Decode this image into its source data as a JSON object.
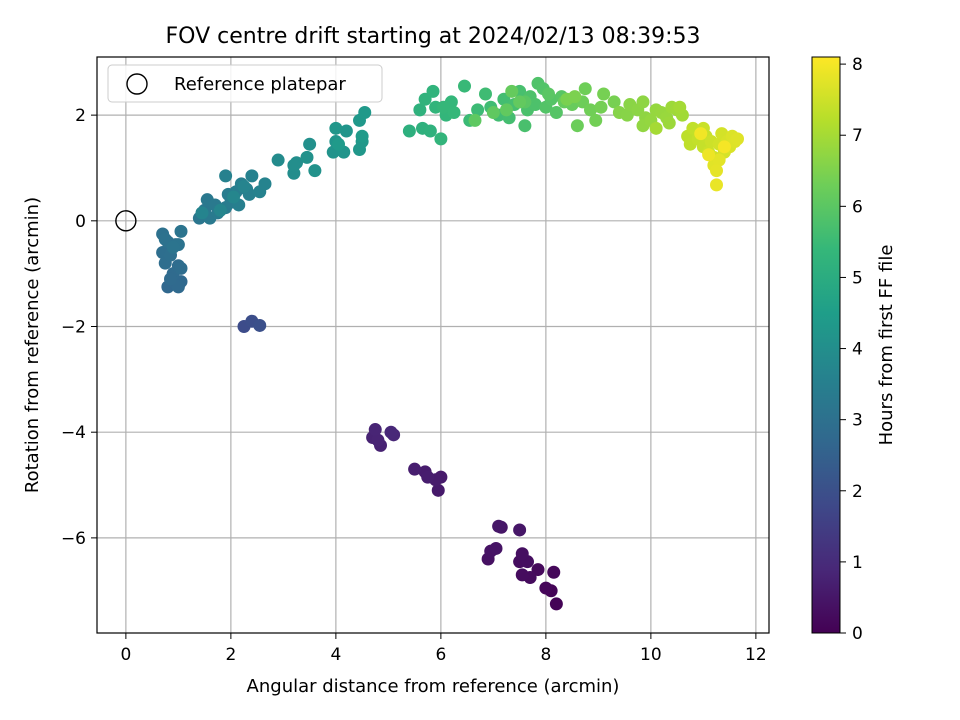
{
  "chart_data": {
    "type": "scatter",
    "title": "FOV centre drift starting at 2024/02/13 08:39:53",
    "xlabel": "Angular distance from reference (arcmin)",
    "ylabel": "Rotation from reference (arcmin)",
    "colorbar_label": "Hours from first FF file",
    "xlim": [
      -0.55,
      12.25
    ],
    "ylim": [
      -7.8,
      3.1
    ],
    "clim": [
      0,
      8.1
    ],
    "xticks": [
      0,
      2,
      4,
      6,
      8,
      10,
      12
    ],
    "xtick_labels": [
      "0",
      "2",
      "4",
      "6",
      "8",
      "10",
      "12"
    ],
    "yticks": [
      -6,
      -4,
      -2,
      0,
      2
    ],
    "ytick_labels": [
      "−6",
      "−4",
      "−2",
      "0",
      "2"
    ],
    "cticks": [
      0,
      1,
      2,
      3,
      4,
      5,
      6,
      7,
      8
    ],
    "ctick_labels": [
      "0",
      "1",
      "2",
      "3",
      "4",
      "5",
      "6",
      "7",
      "8"
    ],
    "grid": true,
    "colormap": "viridis",
    "colormap_stops": [
      "#440154",
      "#482878",
      "#3e4989",
      "#31688e",
      "#26828e",
      "#1f9e89",
      "#35b779",
      "#6ece58",
      "#b5de2b",
      "#fde725"
    ],
    "legend": {
      "placement": "upper-left",
      "entries": [
        {
          "label": "Reference platepar",
          "marker": "open-circle"
        }
      ]
    },
    "reference_point": {
      "x": 0,
      "y": 0
    },
    "series": [
      {
        "points": [
          [
            8.2,
            -7.25,
            0.05
          ],
          [
            8.1,
            -7.0,
            0.08
          ],
          [
            8.0,
            -6.95,
            0.12
          ],
          [
            8.15,
            -6.65,
            0.15
          ],
          [
            7.85,
            -6.6,
            0.18
          ],
          [
            7.7,
            -6.75,
            0.22
          ],
          [
            7.55,
            -6.7,
            0.25
          ],
          [
            7.5,
            -6.45,
            0.28
          ],
          [
            7.65,
            -6.45,
            0.3
          ],
          [
            7.55,
            -6.3,
            0.33
          ],
          [
            6.9,
            -6.4,
            0.36
          ],
          [
            6.95,
            -6.25,
            0.4
          ],
          [
            7.05,
            -6.2,
            0.42
          ],
          [
            7.15,
            -5.8,
            0.45
          ],
          [
            7.5,
            -5.85,
            0.48
          ],
          [
            7.1,
            -5.78,
            0.5
          ],
          [
            5.95,
            -5.1,
            0.55
          ],
          [
            6.0,
            -4.85,
            0.58
          ],
          [
            5.9,
            -4.9,
            0.6
          ],
          [
            5.7,
            -4.75,
            0.62
          ],
          [
            5.75,
            -4.85,
            0.65
          ],
          [
            5.5,
            -4.7,
            0.68
          ],
          [
            4.85,
            -4.25,
            0.75
          ],
          [
            4.7,
            -4.1,
            0.78
          ],
          [
            4.8,
            -4.15,
            0.8
          ],
          [
            4.75,
            -3.95,
            0.82
          ],
          [
            5.1,
            -4.05,
            0.88
          ],
          [
            5.05,
            -4.0,
            0.9
          ],
          [
            2.25,
            -2.0,
            1.9
          ],
          [
            2.4,
            -1.9,
            1.95
          ],
          [
            2.55,
            -1.98,
            2.0
          ],
          [
            0.8,
            -1.25,
            2.7
          ],
          [
            0.95,
            -1.2,
            2.72
          ],
          [
            1.05,
            -1.15,
            2.75
          ],
          [
            1.0,
            -1.25,
            2.78
          ],
          [
            0.9,
            -1.0,
            2.8
          ],
          [
            0.85,
            -1.1,
            2.82
          ],
          [
            1.0,
            -0.85,
            2.85
          ],
          [
            1.05,
            -0.9,
            2.88
          ],
          [
            0.75,
            -0.8,
            2.9
          ],
          [
            0.7,
            -0.6,
            2.92
          ],
          [
            0.85,
            -0.65,
            2.95
          ],
          [
            0.95,
            -0.45,
            2.98
          ],
          [
            0.8,
            -0.4,
            3.0
          ],
          [
            0.7,
            -0.25,
            3.02
          ],
          [
            0.75,
            -0.35,
            3.05
          ],
          [
            1.0,
            -0.45,
            3.08
          ],
          [
            1.05,
            -0.2,
            3.1
          ],
          [
            0.9,
            -0.5,
            3.12
          ],
          [
            1.4,
            0.05,
            3.2
          ],
          [
            1.5,
            0.2,
            3.22
          ],
          [
            1.55,
            0.4,
            3.25
          ],
          [
            1.7,
            0.3,
            3.28
          ],
          [
            1.6,
            0.05,
            3.3
          ],
          [
            1.75,
            0.15,
            3.32
          ],
          [
            1.9,
            0.25,
            3.35
          ],
          [
            2.0,
            0.35,
            3.38
          ],
          [
            1.95,
            0.5,
            3.4
          ],
          [
            2.1,
            0.55,
            3.42
          ],
          [
            2.2,
            0.7,
            3.45
          ],
          [
            2.3,
            0.6,
            3.48
          ],
          [
            2.15,
            0.3,
            3.5
          ],
          [
            2.35,
            0.5,
            3.52
          ],
          [
            1.9,
            0.85,
            3.55
          ],
          [
            2.4,
            0.85,
            3.58
          ],
          [
            2.55,
            0.55,
            3.6
          ],
          [
            2.65,
            0.7,
            3.62
          ],
          [
            2.25,
            0.65,
            3.65
          ],
          [
            1.45,
            0.15,
            3.68
          ],
          [
            1.8,
            0.2,
            3.7
          ],
          [
            2.05,
            0.45,
            3.72
          ],
          [
            2.9,
            1.15,
            3.9
          ],
          [
            3.2,
            0.9,
            3.95
          ],
          [
            3.25,
            1.1,
            3.98
          ],
          [
            3.2,
            1.05,
            4.0
          ],
          [
            3.5,
            1.45,
            4.05
          ],
          [
            3.45,
            1.2,
            4.08
          ],
          [
            3.6,
            0.95,
            4.1
          ],
          [
            3.95,
            1.3,
            4.15
          ],
          [
            4.0,
            1.5,
            4.18
          ],
          [
            4.15,
            1.3,
            4.2
          ],
          [
            4.2,
            1.7,
            4.22
          ],
          [
            4.0,
            1.75,
            4.25
          ],
          [
            4.45,
            1.35,
            4.28
          ],
          [
            4.5,
            1.5,
            4.3
          ],
          [
            4.45,
            1.9,
            4.32
          ],
          [
            4.55,
            2.05,
            4.35
          ],
          [
            4.05,
            1.45,
            4.38
          ],
          [
            4.5,
            1.6,
            4.4
          ],
          [
            5.4,
            1.7,
            5.1
          ],
          [
            5.65,
            1.75,
            5.15
          ],
          [
            5.8,
            1.7,
            5.18
          ],
          [
            5.6,
            2.1,
            5.2
          ],
          [
            5.7,
            2.3,
            5.22
          ],
          [
            5.85,
            2.45,
            5.25
          ],
          [
            5.9,
            2.15,
            5.28
          ],
          [
            6.0,
            1.55,
            5.3
          ],
          [
            6.1,
            2.0,
            5.32
          ],
          [
            6.2,
            2.25,
            5.35
          ],
          [
            6.05,
            2.15,
            5.38
          ],
          [
            6.25,
            2.05,
            5.4
          ],
          [
            6.45,
            2.55,
            5.45
          ],
          [
            6.55,
            1.9,
            5.5
          ],
          [
            6.7,
            2.1,
            5.52
          ],
          [
            6.85,
            2.4,
            5.55
          ],
          [
            6.95,
            2.15,
            5.58
          ],
          [
            7.1,
            2.0,
            5.6
          ],
          [
            7.2,
            2.3,
            5.62
          ],
          [
            7.3,
            1.95,
            5.65
          ],
          [
            7.4,
            2.2,
            5.68
          ],
          [
            7.5,
            2.45,
            5.7
          ],
          [
            7.6,
            1.8,
            5.72
          ],
          [
            7.65,
            2.1,
            5.75
          ],
          [
            7.8,
            2.2,
            5.78
          ],
          [
            7.7,
            2.35,
            5.8
          ],
          [
            7.85,
            2.6,
            5.82
          ],
          [
            7.95,
            2.5,
            5.85
          ],
          [
            8.0,
            2.15,
            5.88
          ],
          [
            8.1,
            2.3,
            5.9
          ],
          [
            8.2,
            2.05,
            5.92
          ],
          [
            8.3,
            2.35,
            5.95
          ],
          [
            8.05,
            2.4,
            5.98
          ],
          [
            7.6,
            2.25,
            6.0
          ],
          [
            6.65,
            1.9,
            6.05
          ],
          [
            7.0,
            2.05,
            6.08
          ],
          [
            7.25,
            2.1,
            6.1
          ],
          [
            7.5,
            2.25,
            6.12
          ],
          [
            7.35,
            2.45,
            6.15
          ],
          [
            8.35,
            2.25,
            6.18
          ],
          [
            8.5,
            2.2,
            6.2
          ],
          [
            8.6,
            1.8,
            6.25
          ],
          [
            8.7,
            2.25,
            6.28
          ],
          [
            8.75,
            2.5,
            6.3
          ],
          [
            8.85,
            2.1,
            6.32
          ],
          [
            8.95,
            1.9,
            6.35
          ],
          [
            9.05,
            2.15,
            6.38
          ],
          [
            9.1,
            2.4,
            6.4
          ],
          [
            9.3,
            2.25,
            6.42
          ],
          [
            8.4,
            2.3,
            6.45
          ],
          [
            8.55,
            2.35,
            6.48
          ],
          [
            9.4,
            2.05,
            6.6
          ],
          [
            9.55,
            2.0,
            6.62
          ],
          [
            9.6,
            2.2,
            6.65
          ],
          [
            9.75,
            2.1,
            6.68
          ],
          [
            9.85,
            2.25,
            6.7
          ],
          [
            9.9,
            1.95,
            6.72
          ],
          [
            9.85,
            1.8,
            6.75
          ],
          [
            10.0,
            1.9,
            6.78
          ],
          [
            10.1,
            2.1,
            6.8
          ],
          [
            10.2,
            2.05,
            6.82
          ],
          [
            10.3,
            1.95,
            6.85
          ],
          [
            10.35,
            1.85,
            6.88
          ],
          [
            10.4,
            2.15,
            6.9
          ],
          [
            10.5,
            2.1,
            6.92
          ],
          [
            10.6,
            2.0,
            6.95
          ],
          [
            10.55,
            2.15,
            6.98
          ],
          [
            10.1,
            1.75,
            7.0
          ],
          [
            10.7,
            1.6,
            7.3
          ],
          [
            10.75,
            1.45,
            7.32
          ],
          [
            10.8,
            1.75,
            7.35
          ],
          [
            10.9,
            1.55,
            7.38
          ],
          [
            11.0,
            1.4,
            7.4
          ],
          [
            11.05,
            1.6,
            7.42
          ],
          [
            11.0,
            1.75,
            7.45
          ],
          [
            11.1,
            1.3,
            7.48
          ],
          [
            11.15,
            1.5,
            7.5
          ],
          [
            11.2,
            1.2,
            7.52
          ],
          [
            11.3,
            1.45,
            7.55
          ],
          [
            11.35,
            1.65,
            7.58
          ],
          [
            11.4,
            1.3,
            7.6
          ],
          [
            11.45,
            1.5,
            7.62
          ],
          [
            11.5,
            1.4,
            7.65
          ],
          [
            11.55,
            1.6,
            7.68
          ],
          [
            11.6,
            1.5,
            7.7
          ],
          [
            11.65,
            1.55,
            7.72
          ],
          [
            11.2,
            1.05,
            7.75
          ],
          [
            11.3,
            1.15,
            7.78
          ],
          [
            11.25,
            0.95,
            7.8
          ],
          [
            11.25,
            0.68,
            7.85
          ],
          [
            11.1,
            1.25,
            7.9
          ],
          [
            10.95,
            1.65,
            7.95
          ],
          [
            11.4,
            1.4,
            8.0
          ]
        ]
      }
    ]
  }
}
